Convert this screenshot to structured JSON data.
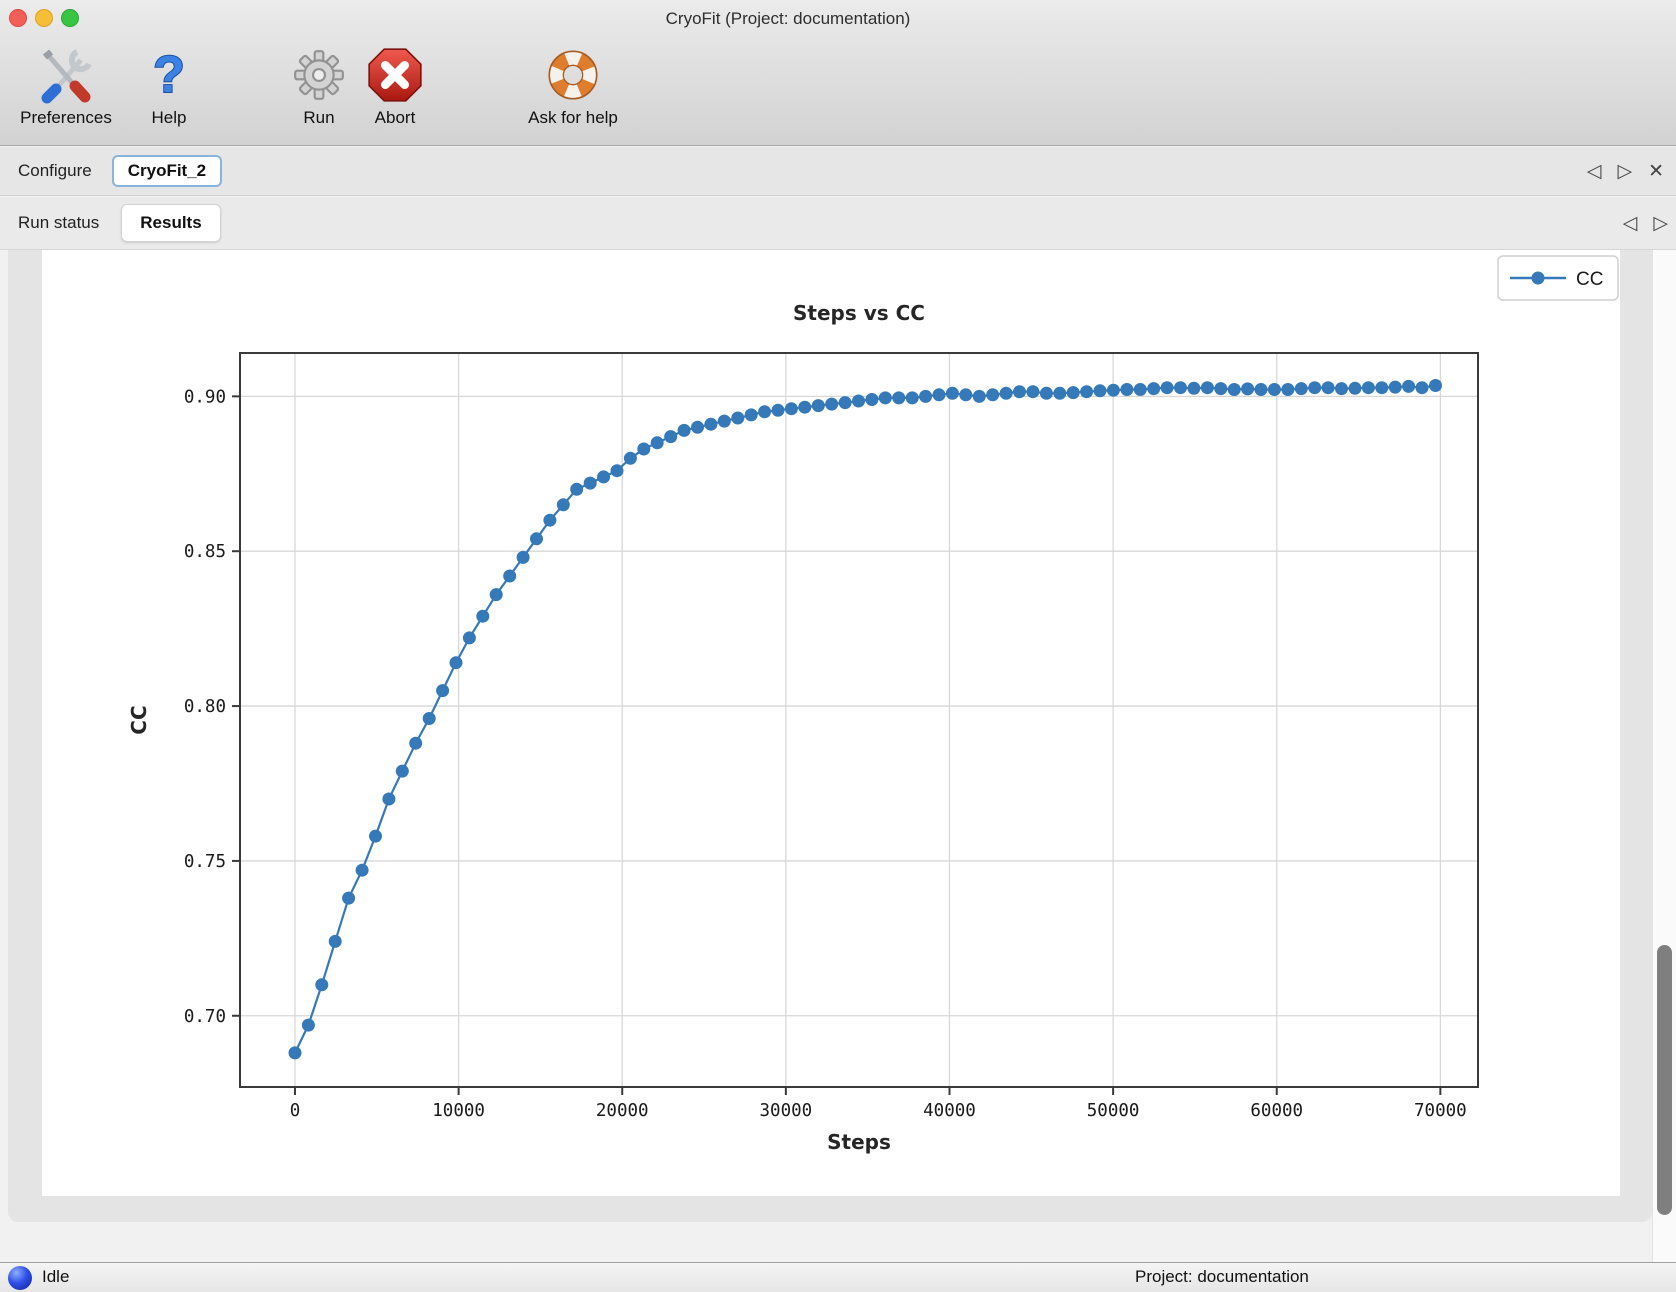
{
  "window": {
    "title": "CryoFit (Project: documentation)"
  },
  "toolbar": {
    "items": [
      {
        "label": "Preferences",
        "icon": "preferences-tools-icon"
      },
      {
        "label": "Help",
        "icon": "help-question-icon"
      },
      {
        "label": "Run",
        "icon": "run-gear-icon"
      },
      {
        "label": "Abort",
        "icon": "abort-octagon-icon"
      },
      {
        "label": "Ask for help",
        "icon": "lifebuoy-icon"
      }
    ]
  },
  "tab_bar_outer": {
    "tabs": [
      {
        "label": "Configure",
        "selected": false
      },
      {
        "label": "CryoFit_2",
        "selected": true
      }
    ],
    "nav_prev": "◁",
    "nav_next": "▷",
    "nav_close": "✕"
  },
  "tab_bar_inner": {
    "tabs": [
      {
        "label": "Run status",
        "selected": false
      },
      {
        "label": "Results",
        "selected": true
      }
    ],
    "nav_prev": "◁",
    "nav_next": "▷"
  },
  "status_bar": {
    "state": "Idle",
    "project": "Project: documentation"
  },
  "chart_data": {
    "type": "line",
    "title": "Steps vs CC",
    "xlabel": "Steps",
    "ylabel": "CC",
    "grid": true,
    "legend_position": "upper-right-above-axes",
    "legend": [
      {
        "label": "CC",
        "color": "#3579b8",
        "marker": "circle"
      }
    ],
    "xlim": [
      -3360,
      72300
    ],
    "ylim": [
      0.677,
      0.914
    ],
    "xticks": [
      0,
      10000,
      20000,
      30000,
      40000,
      50000,
      60000,
      70000
    ],
    "yticks": [
      0.7,
      0.75,
      0.8,
      0.85,
      0.9
    ],
    "frame_color": "#3a3a3a",
    "grid_color": "#d8d8d8",
    "series": [
      {
        "name": "CC",
        "color": "#3579b8",
        "x": [
          0,
          820,
          1640,
          2460,
          3280,
          4100,
          4920,
          5740,
          6560,
          7380,
          8200,
          9020,
          9840,
          10660,
          11480,
          12300,
          13120,
          13940,
          14760,
          15580,
          16400,
          17220,
          18040,
          18860,
          19680,
          20500,
          21320,
          22140,
          22960,
          23780,
          24600,
          25420,
          26240,
          27060,
          27880,
          28700,
          29520,
          30340,
          31160,
          31980,
          32800,
          33620,
          34440,
          35260,
          36080,
          36900,
          37720,
          38540,
          39360,
          40180,
          41000,
          41820,
          42640,
          43460,
          44280,
          45100,
          45920,
          46740,
          47560,
          48380,
          49200,
          50020,
          50840,
          51660,
          52480,
          53300,
          54120,
          54940,
          55760,
          56580,
          57400,
          58220,
          59040,
          59860,
          60680,
          61500,
          62320,
          63140,
          63960,
          64780,
          65600,
          66420,
          67240,
          68060,
          68880,
          69700
        ],
        "y": [
          0.688,
          0.697,
          0.71,
          0.724,
          0.738,
          0.747,
          0.758,
          0.77,
          0.779,
          0.788,
          0.796,
          0.805,
          0.814,
          0.822,
          0.829,
          0.836,
          0.842,
          0.848,
          0.854,
          0.86,
          0.865,
          0.87,
          0.872,
          0.874,
          0.876,
          0.88,
          0.883,
          0.885,
          0.887,
          0.889,
          0.89,
          0.891,
          0.892,
          0.893,
          0.894,
          0.895,
          0.8955,
          0.896,
          0.8965,
          0.897,
          0.8975,
          0.898,
          0.8985,
          0.899,
          0.8995,
          0.8995,
          0.8995,
          0.9,
          0.9005,
          0.901,
          0.9005,
          0.9,
          0.9005,
          0.901,
          0.9015,
          0.9015,
          0.901,
          0.901,
          0.9012,
          0.9015,
          0.9018,
          0.902,
          0.9022,
          0.9022,
          0.9025,
          0.9028,
          0.9028,
          0.9026,
          0.9028,
          0.9025,
          0.9022,
          0.9024,
          0.9022,
          0.9022,
          0.9022,
          0.9025,
          0.9028,
          0.9028,
          0.9025,
          0.9026,
          0.9028,
          0.9028,
          0.903,
          0.9032,
          0.9028,
          0.9035
        ]
      }
    ]
  }
}
